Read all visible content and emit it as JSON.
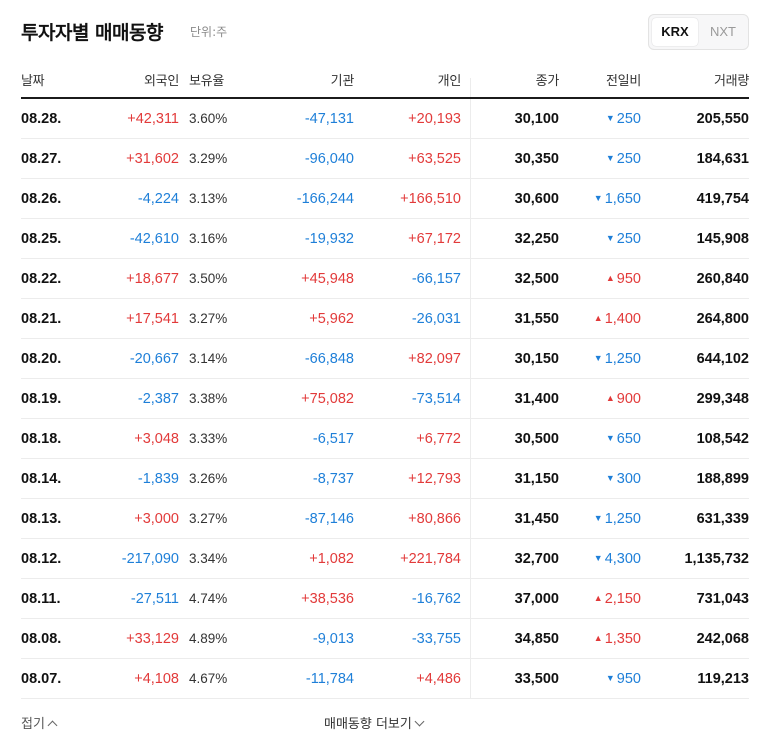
{
  "header": {
    "title": "투자자별 매매동향",
    "unit": "단위:주",
    "tabs": [
      {
        "label": "KRX",
        "selected": true
      },
      {
        "label": "NXT",
        "selected": false
      }
    ]
  },
  "table": {
    "columns": [
      "날짜",
      "외국인",
      "보유율",
      "기관",
      "개인",
      "종가",
      "전일비",
      "거래량"
    ],
    "rows": [
      {
        "date": "08.28.",
        "foreign": "+42,311",
        "hold": "3.60%",
        "inst": "-47,131",
        "indiv": "+20,193",
        "close": "30,100",
        "chg": "250",
        "chg_dir": "down",
        "vol": "205,550"
      },
      {
        "date": "08.27.",
        "foreign": "+31,602",
        "hold": "3.29%",
        "inst": "-96,040",
        "indiv": "+63,525",
        "close": "30,350",
        "chg": "250",
        "chg_dir": "down",
        "vol": "184,631"
      },
      {
        "date": "08.26.",
        "foreign": "-4,224",
        "hold": "3.13%",
        "inst": "-166,244",
        "indiv": "+166,510",
        "close": "30,600",
        "chg": "1,650",
        "chg_dir": "down",
        "vol": "419,754"
      },
      {
        "date": "08.25.",
        "foreign": "-42,610",
        "hold": "3.16%",
        "inst": "-19,932",
        "indiv": "+67,172",
        "close": "32,250",
        "chg": "250",
        "chg_dir": "down",
        "vol": "145,908"
      },
      {
        "date": "08.22.",
        "foreign": "+18,677",
        "hold": "3.50%",
        "inst": "+45,948",
        "indiv": "-66,157",
        "close": "32,500",
        "chg": "950",
        "chg_dir": "up",
        "vol": "260,840"
      },
      {
        "date": "08.21.",
        "foreign": "+17,541",
        "hold": "3.27%",
        "inst": "+5,962",
        "indiv": "-26,031",
        "close": "31,550",
        "chg": "1,400",
        "chg_dir": "up",
        "vol": "264,800"
      },
      {
        "date": "08.20.",
        "foreign": "-20,667",
        "hold": "3.14%",
        "inst": "-66,848",
        "indiv": "+82,097",
        "close": "30,150",
        "chg": "1,250",
        "chg_dir": "down",
        "vol": "644,102"
      },
      {
        "date": "08.19.",
        "foreign": "-2,387",
        "hold": "3.38%",
        "inst": "+75,082",
        "indiv": "-73,514",
        "close": "31,400",
        "chg": "900",
        "chg_dir": "up",
        "vol": "299,348"
      },
      {
        "date": "08.18.",
        "foreign": "+3,048",
        "hold": "3.33%",
        "inst": "-6,517",
        "indiv": "+6,772",
        "close": "30,500",
        "chg": "650",
        "chg_dir": "down",
        "vol": "108,542"
      },
      {
        "date": "08.14.",
        "foreign": "-1,839",
        "hold": "3.26%",
        "inst": "-8,737",
        "indiv": "+12,793",
        "close": "31,150",
        "chg": "300",
        "chg_dir": "down",
        "vol": "188,899"
      },
      {
        "date": "08.13.",
        "foreign": "+3,000",
        "hold": "3.27%",
        "inst": "-87,146",
        "indiv": "+80,866",
        "close": "31,450",
        "chg": "1,250",
        "chg_dir": "down",
        "vol": "631,339"
      },
      {
        "date": "08.12.",
        "foreign": "-217,090",
        "hold": "3.34%",
        "inst": "+1,082",
        "indiv": "+221,784",
        "close": "32,700",
        "chg": "4,300",
        "chg_dir": "down",
        "vol": "1,135,732"
      },
      {
        "date": "08.11.",
        "foreign": "-27,511",
        "hold": "4.74%",
        "inst": "+38,536",
        "indiv": "-16,762",
        "close": "37,000",
        "chg": "2,150",
        "chg_dir": "up",
        "vol": "731,043"
      },
      {
        "date": "08.08.",
        "foreign": "+33,129",
        "hold": "4.89%",
        "inst": "-9,013",
        "indiv": "-33,755",
        "close": "34,850",
        "chg": "1,350",
        "chg_dir": "up",
        "vol": "242,068"
      },
      {
        "date": "08.07.",
        "foreign": "+4,108",
        "hold": "4.67%",
        "inst": "-11,784",
        "indiv": "+4,486",
        "close": "33,500",
        "chg": "950",
        "chg_dir": "down",
        "vol": "119,213"
      }
    ]
  },
  "footer": {
    "fold_label": "접기",
    "more_label": "매매동향 더보기"
  },
  "colors": {
    "up": "#e23a3a",
    "down": "#1e7fd8"
  },
  "icons": {
    "up_arrow": "triangle-up-icon",
    "down_arrow": "triangle-down-icon",
    "fold": "chevron-up-icon",
    "more": "chevron-down-icon"
  }
}
